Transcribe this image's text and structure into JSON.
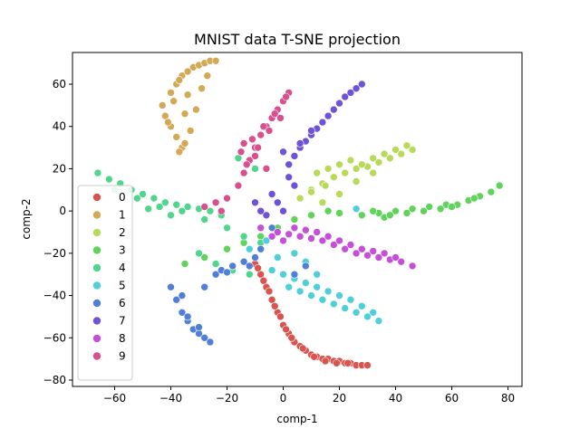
{
  "chart_data": {
    "type": "scatter",
    "title": "MNIST data T-SNE projection",
    "xlabel": "comp-1",
    "ylabel": "comp-2",
    "xlim": [
      -75,
      85
    ],
    "ylim": [
      -83,
      75
    ],
    "x_ticks": [
      -60,
      -40,
      -20,
      0,
      20,
      40,
      60,
      80
    ],
    "y_ticks": [
      -80,
      -60,
      -40,
      -20,
      0,
      20,
      40,
      60
    ],
    "x_tick_labels": [
      "−60",
      "−40",
      "−20",
      "0",
      "20",
      "40",
      "60",
      "80"
    ],
    "y_tick_labels": [
      "−80",
      "−60",
      "−40",
      "−20",
      "0",
      "20",
      "40",
      "60"
    ],
    "grid": false,
    "legend_position": "center-left",
    "series": [
      {
        "name": "0",
        "color": "#d9534f",
        "x": [
          -10,
          -8,
          -6,
          -4,
          -2,
          0,
          2,
          4,
          6,
          8,
          10,
          12,
          14,
          16,
          18,
          20,
          22,
          24,
          26,
          28,
          30,
          -9,
          -5,
          -1,
          3,
          7,
          11,
          15,
          19,
          23,
          -7,
          -3,
          1
        ],
        "y": [
          -25,
          -30,
          -36,
          -42,
          -48,
          -54,
          -58,
          -62,
          -64,
          -66,
          -68,
          -69,
          -70,
          -70,
          -71,
          -71,
          -72,
          -72,
          -73,
          -73,
          -73,
          -27,
          -38,
          -50,
          -60,
          -65,
          -69,
          -71,
          -72,
          -72,
          -33,
          -45,
          -56
        ]
      },
      {
        "name": "1",
        "color": "#d4a955",
        "x": [
          -43,
          -40,
          -38,
          -36,
          -34,
          -32,
          -30,
          -28,
          -26,
          -24,
          -42,
          -40,
          -38,
          -36,
          -37,
          -35,
          -33,
          -31,
          -29,
          -27,
          -39,
          -35,
          -34,
          -37,
          -41
        ],
        "y": [
          50,
          56,
          60,
          64,
          66,
          68,
          69,
          70,
          71,
          71,
          45,
          40,
          35,
          30,
          28,
          32,
          38,
          48,
          58,
          64,
          52,
          46,
          55,
          62,
          42
        ]
      },
      {
        "name": "2",
        "color": "#b8d95a",
        "x": [
          10,
          14,
          18,
          22,
          26,
          30,
          34,
          38,
          42,
          46,
          12,
          16,
          20,
          24,
          28,
          32,
          36,
          40,
          44,
          14,
          20,
          26,
          32,
          6,
          10,
          15
        ],
        "y": [
          10,
          13,
          16,
          18,
          20,
          21,
          23,
          25,
          27,
          29,
          18,
          20,
          22,
          24,
          22,
          25,
          27,
          29,
          31,
          4,
          8,
          14,
          18,
          6,
          9,
          12
        ]
      },
      {
        "name": "3",
        "color": "#5fd35a",
        "x": [
          28,
          34,
          40,
          46,
          52,
          58,
          62,
          66,
          70,
          74,
          77,
          36,
          44,
          50,
          56,
          60,
          68,
          32,
          38,
          -20,
          -14,
          -8,
          -2,
          4,
          10,
          16,
          20,
          -35,
          -28
        ],
        "y": [
          -2,
          -1,
          0,
          1,
          2,
          3,
          3,
          5,
          7,
          9,
          12,
          -3,
          -1,
          0,
          1,
          2,
          6,
          0,
          -2,
          -18,
          -15,
          -12,
          -8,
          -4,
          -2,
          0,
          -1,
          -25,
          -22
        ]
      },
      {
        "name": "4",
        "color": "#4fd68c",
        "x": [
          -66,
          -62,
          -58,
          -54,
          -50,
          -46,
          -42,
          -38,
          -34,
          -30,
          -26,
          -22,
          -60,
          -52,
          -44,
          -36,
          -28,
          -20,
          -14,
          -8,
          -30,
          -24,
          -18,
          -12,
          -40,
          -48,
          -16,
          -10
        ],
        "y": [
          18,
          15,
          13,
          10,
          8,
          6,
          4,
          3,
          2,
          1,
          0,
          -2,
          10,
          6,
          2,
          0,
          -4,
          -8,
          -12,
          -15,
          -20,
          -25,
          -28,
          -30,
          -2,
          1,
          25,
          20
        ]
      },
      {
        "name": "5",
        "color": "#4fcfd8",
        "x": [
          -4,
          0,
          4,
          8,
          12,
          16,
          20,
          24,
          28,
          32,
          34,
          2,
          6,
          10,
          14,
          18,
          22,
          26,
          30,
          -18,
          -12,
          -6,
          4,
          8,
          12,
          -2,
          26
        ],
        "y": [
          -28,
          -30,
          -32,
          -34,
          -36,
          -38,
          -40,
          -42,
          -45,
          -48,
          -52,
          -36,
          -38,
          -40,
          -42,
          -44,
          -46,
          -48,
          -50,
          -26,
          -18,
          -14,
          -20,
          -24,
          -30,
          -22,
          1
        ]
      },
      {
        "name": "6",
        "color": "#4f7fd8",
        "x": [
          -40,
          -38,
          -36,
          -34,
          -32,
          -30,
          -28,
          -26,
          -24,
          -22,
          -18,
          -14,
          -10,
          -36,
          -34,
          -30,
          -28,
          -20,
          -12,
          -8,
          -4,
          4,
          8
        ],
        "y": [
          -36,
          -42,
          -48,
          -52,
          -56,
          -58,
          -60,
          -62,
          -30,
          -28,
          -26,
          -24,
          -22,
          -40,
          -50,
          -55,
          -36,
          -29,
          -26,
          -18,
          -8,
          -30,
          -26
        ]
      },
      {
        "name": "7",
        "color": "#6e52d8",
        "x": [
          2,
          4,
          6,
          8,
          10,
          12,
          14,
          16,
          18,
          20,
          22,
          24,
          26,
          28,
          0,
          2,
          4,
          -4,
          -2,
          0,
          -6,
          -8,
          -10,
          6,
          10
        ],
        "y": [
          22,
          26,
          30,
          33,
          36,
          39,
          42,
          45,
          48,
          51,
          54,
          56,
          58,
          60,
          28,
          16,
          12,
          8,
          4,
          0,
          -2,
          0,
          4,
          32,
          38
        ]
      },
      {
        "name": "8",
        "color": "#c450d8",
        "x": [
          -2,
          2,
          6,
          10,
          14,
          18,
          22,
          26,
          30,
          34,
          38,
          42,
          46,
          4,
          8,
          12,
          16,
          20,
          24,
          28,
          32,
          36,
          40,
          -8,
          -4,
          0
        ],
        "y": [
          -10,
          -11,
          -12,
          -13,
          -14,
          -16,
          -18,
          -20,
          -21,
          -22,
          -23,
          -24,
          -26,
          -8,
          -9,
          -10,
          -12,
          -14,
          -16,
          -18,
          -19,
          -20,
          -22,
          -8,
          -12,
          -14
        ]
      },
      {
        "name": "9",
        "color": "#d9508f",
        "x": [
          -16,
          -14,
          -12,
          -10,
          -8,
          -6,
          -4,
          -2,
          0,
          2,
          -15,
          -11,
          -7,
          -3,
          1,
          -13,
          -9,
          -5,
          -1,
          -14,
          -10,
          -6,
          -20,
          -24,
          -28,
          -22
        ],
        "y": [
          12,
          18,
          24,
          30,
          36,
          40,
          44,
          48,
          52,
          56,
          28,
          34,
          40,
          46,
          54,
          22,
          30,
          38,
          44,
          32,
          26,
          20,
          6,
          4,
          2,
          0
        ]
      }
    ]
  }
}
